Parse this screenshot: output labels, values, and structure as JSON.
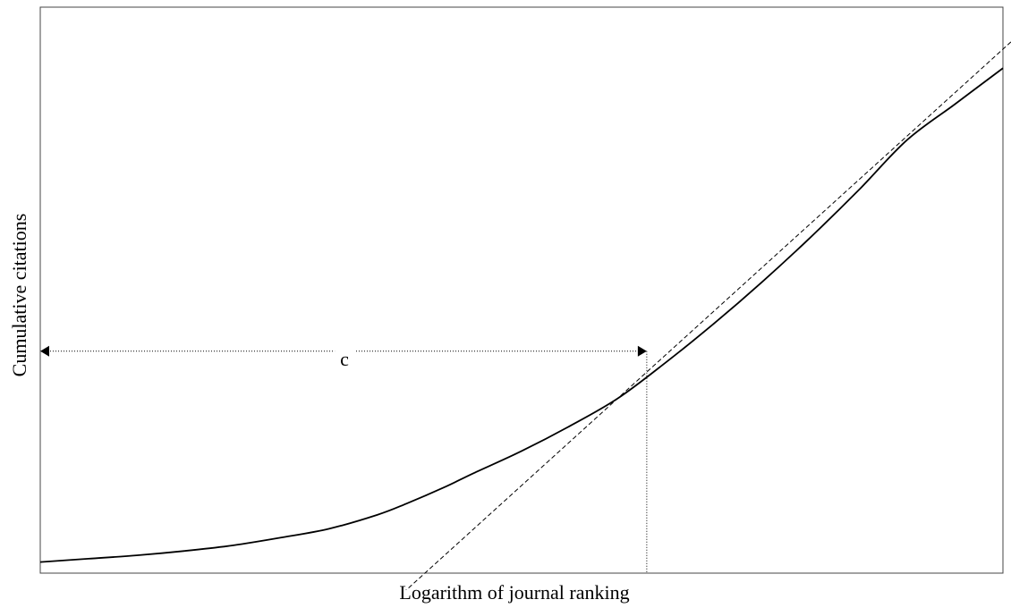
{
  "chart_data": {
    "type": "line",
    "title": "",
    "xlabel": "Logarithm of journal ranking",
    "ylabel": "Cumulative citations",
    "grid": false,
    "legend": "none",
    "series": [
      {
        "style": "solid",
        "x": [
          0,
          5,
          10,
          15,
          20,
          25,
          30,
          35,
          38,
          42,
          45,
          50,
          55,
          60,
          65,
          70,
          75,
          80,
          85,
          90,
          95,
          100
        ],
        "y": [
          0,
          0.6,
          1.2,
          2.0,
          3.0,
          4.4,
          6.0,
          8.5,
          10.5,
          13.5,
          16.0,
          20.0,
          24.5,
          29.5,
          36.0,
          43.0,
          50.5,
          58.5,
          67.0,
          76.0,
          82.5,
          89.0
        ]
      },
      {
        "style": "dashed",
        "x": [
          35.5,
          101
        ],
        "y": [
          -9,
          94
        ]
      }
    ],
    "annotations": [
      {
        "label": "c",
        "type": "double-arrow",
        "x": [
          0,
          63
        ],
        "y": 38
      },
      {
        "type": "dotted-vertical",
        "x": 63,
        "y": [
          0,
          38
        ]
      }
    ],
    "xlim": [
      0,
      100
    ],
    "ylim": [
      -2,
      100
    ]
  }
}
